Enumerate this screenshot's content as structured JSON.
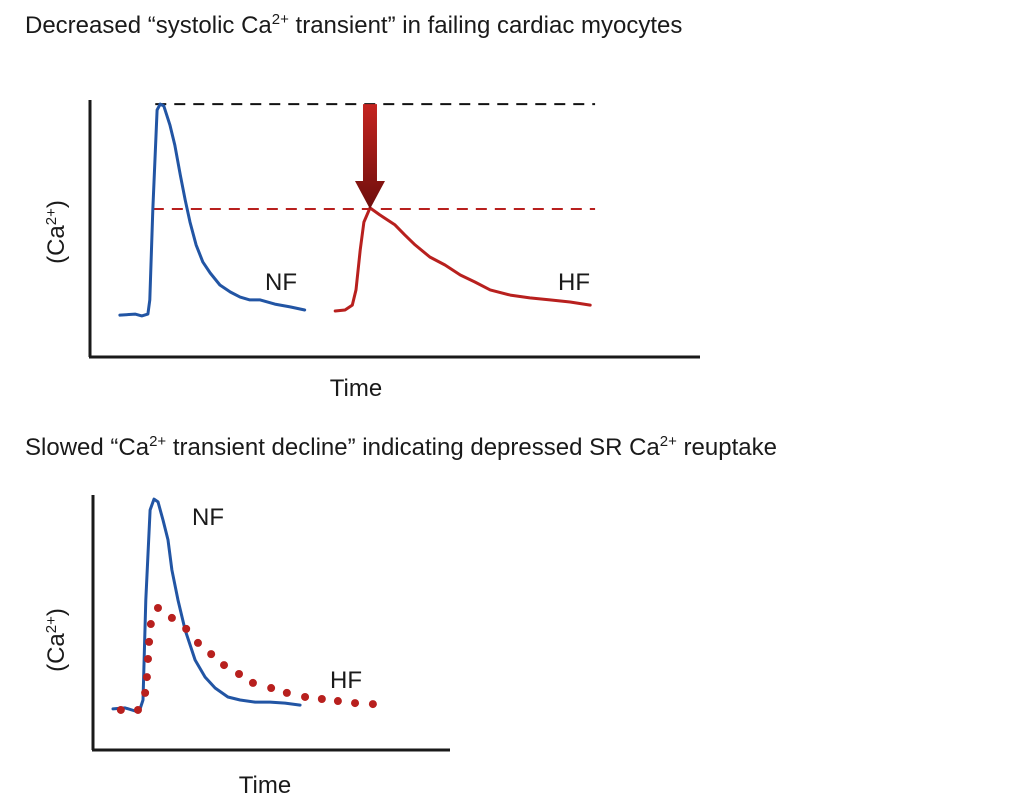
{
  "panels": [
    {
      "title_parts": [
        "Decreased “systolic Ca",
        "2+",
        " transient” in failing cardiac myocytes"
      ],
      "ylabel_base": "(Ca",
      "ylabel_sup": "2+",
      "ylabel_end": ")",
      "xlabel": "Time"
    },
    {
      "title_parts": [
        "Slowed “Ca",
        "2+",
        " transient decline” indicating depressed SR Ca",
        "2+",
        " reuptake"
      ],
      "ylabel_base": "(Ca",
      "ylabel_sup": "2+",
      "ylabel_end": ")",
      "xlabel": "Time"
    }
  ],
  "colors": {
    "nf": "#2255a4",
    "hf": "#b8201e",
    "ref_black": "#111111",
    "arrow": "#b01c1a",
    "axis": "#1a1a1a"
  },
  "chart_data": [
    {
      "type": "line",
      "title": "Decreased “systolic Ca2+ transient” in failing cardiac myocytes",
      "xlabel": "Time",
      "ylabel": "(Ca2+)",
      "xlim": [
        0,
        100
      ],
      "ylim": [
        0,
        100
      ],
      "grid": false,
      "series": [
        {
          "name": "NF",
          "label": "NF",
          "style": "solid",
          "t": [
            4.9,
            7.4,
            8.5,
            9.5,
            9.8,
            10.3,
            11,
            11.5,
            12.1,
            13.1,
            13.9,
            14.8,
            15.6,
            16.4,
            17.4,
            18.5,
            19.7,
            21.3,
            23,
            24.6,
            26.2,
            27.9,
            30.3,
            32.8,
            35.2
          ],
          "ca": [
            16.3,
            16.7,
            16,
            16.7,
            22.2,
            57.2,
            96.1,
            98.4,
            97.7,
            90.3,
            82.5,
            70.8,
            61.1,
            52.5,
            43.6,
            37,
            32.7,
            28,
            25.3,
            23.3,
            22.2,
            22.2,
            20.6,
            19.5,
            18.3
          ]
        },
        {
          "name": "HF",
          "label": "HF",
          "style": "solid",
          "t": [
            40.2,
            41.8,
            43,
            43.6,
            44.3,
            44.9,
            45.9,
            47.5,
            50,
            51.6,
            53.3,
            55.7,
            58.2,
            60.7,
            63.1,
            65.6,
            68.9,
            72.1,
            75.4,
            78.7,
            82
          ],
          "ca": [
            17.9,
            18.3,
            20.2,
            26.1,
            41.6,
            52.5,
            58,
            55.3,
            51.4,
            47.5,
            43.6,
            38.9,
            35.8,
            31.9,
            29.2,
            26.1,
            24.1,
            23,
            22.2,
            21.4,
            20.2
          ]
        }
      ],
      "reference_lines": [
        {
          "name": "NF peak",
          "ca": 98.4,
          "t_range": [
            10.7,
            82.8
          ],
          "color": "black",
          "style": "dashed"
        },
        {
          "name": "HF peak",
          "ca": 57.6,
          "t_range": [
            10.3,
            82.8
          ],
          "color": "red",
          "style": "dashed"
        }
      ],
      "annotations": [
        {
          "type": "arrow",
          "t": 45.9,
          "from_ca": 98.4,
          "to_ca": 57.6,
          "meaning": "decrease"
        }
      ]
    },
    {
      "type": "line",
      "title": "Slowed “Ca2+ transient decline” indicating depressed SR Ca2+ reuptake",
      "xlabel": "Time",
      "ylabel": "(Ca2+)",
      "xlim": [
        0,
        100
      ],
      "ylim": [
        0,
        100
      ],
      "grid": false,
      "series": [
        {
          "name": "NF",
          "label": "NF",
          "style": "solid",
          "t": [
            5.6,
            9,
            11.8,
            13.2,
            14,
            14.8,
            16,
            17.1,
            18.2,
            19.6,
            21,
            22.1,
            23.8,
            25.8,
            28.6,
            31.4,
            34.2,
            37.8,
            41.2,
            45.4,
            49.6,
            53.8,
            58
          ],
          "ca": [
            16.1,
            16.5,
            15.3,
            16.1,
            19.6,
            58.8,
            94.1,
            98.4,
            97.3,
            90.2,
            82.4,
            70.6,
            58.8,
            47.1,
            35.3,
            28.6,
            24.3,
            20.8,
            19.6,
            18.8,
            18.8,
            18.4,
            17.6
          ]
        },
        {
          "name": "HF",
          "label": "HF",
          "style": "dotted",
          "t": [
            7.8,
            12.6,
            14.6,
            15.1,
            15.4,
            15.7,
            16.2,
            18.2,
            22.1,
            26.1,
            29.4,
            33.1,
            36.7,
            40.9,
            44.8,
            49.9,
            54.3,
            59.4,
            64.1,
            68.6,
            73.4,
            78.4
          ],
          "ca": [
            15.7,
            15.7,
            22.4,
            28.6,
            35.7,
            42.4,
            49.4,
            55.7,
            51.8,
            47.5,
            42,
            37.6,
            33.3,
            29.8,
            26.3,
            24.3,
            22.4,
            20.8,
            20,
            19.2,
            18.4,
            18
          ]
        }
      ]
    }
  ]
}
